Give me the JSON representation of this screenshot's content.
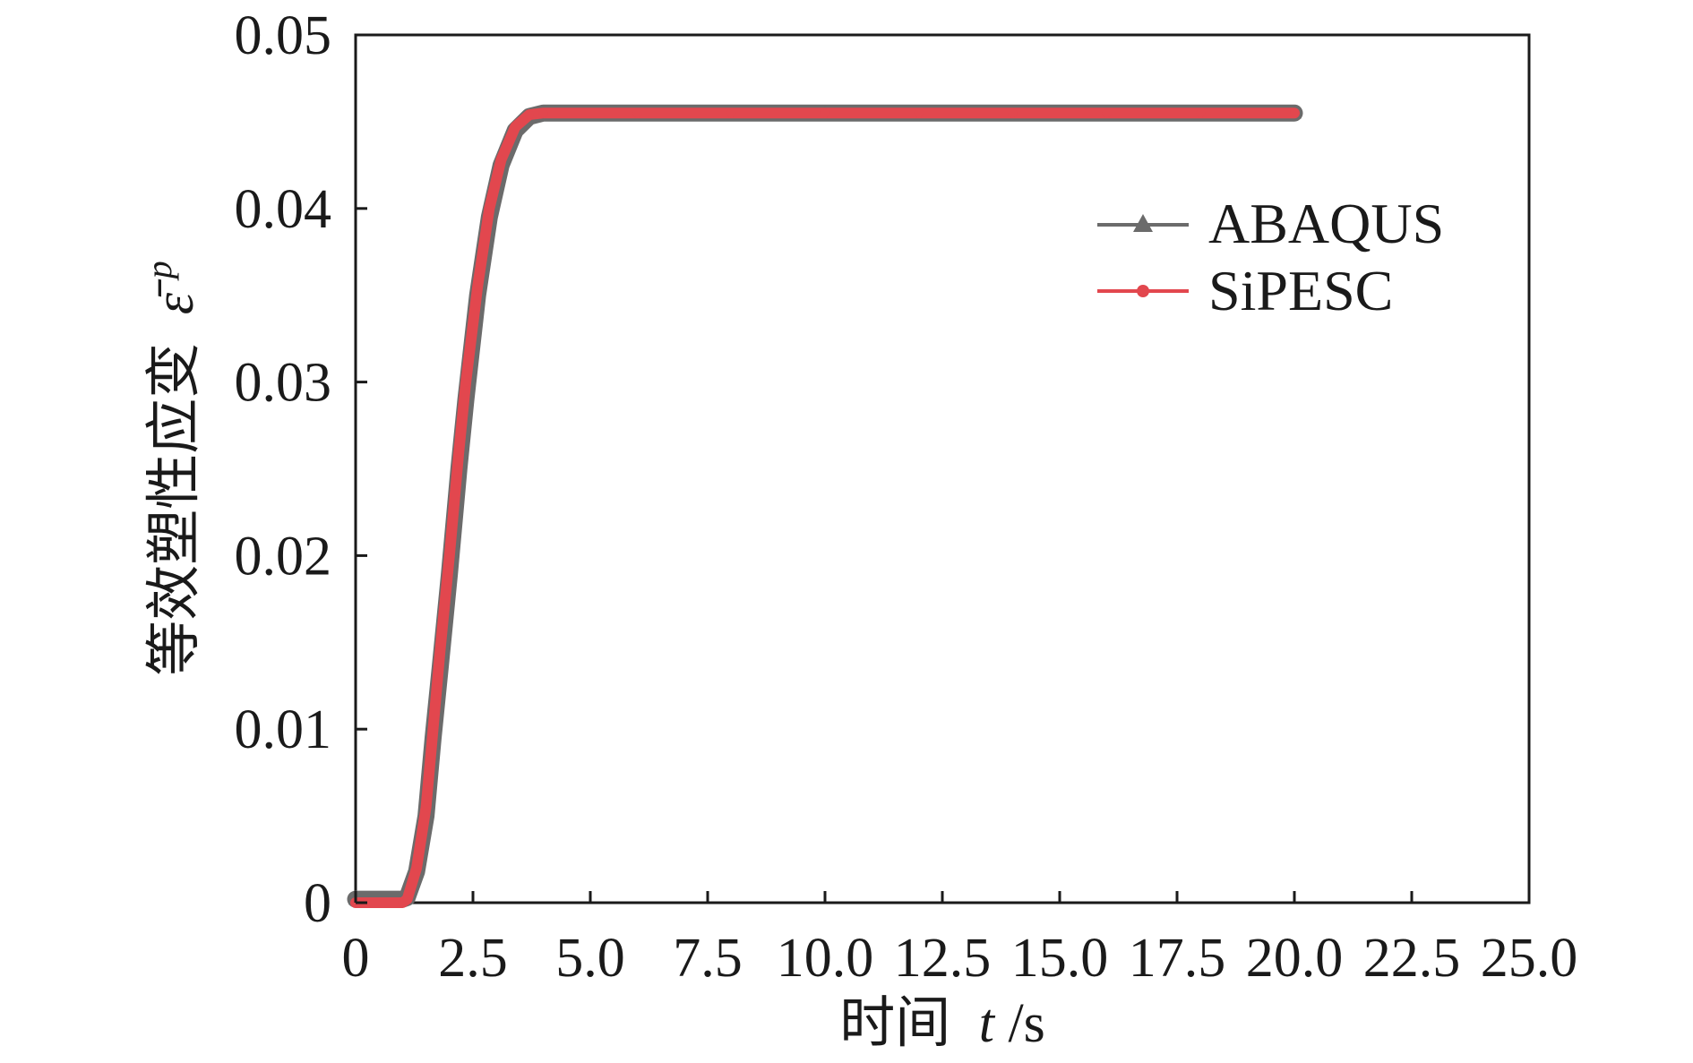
{
  "chart_data": {
    "type": "line",
    "xlabel": {
      "prefix": "时间",
      "var": "t",
      "suffix": "/s"
    },
    "ylabel": {
      "prefix": "等效塑性应变",
      "symbol": "ε̄",
      "sup": "p"
    },
    "xlim": [
      0,
      25
    ],
    "ylim": [
      0,
      0.05
    ],
    "x_tick_labels": [
      "0",
      "2.5",
      "5.0",
      "7.5",
      "10.0",
      "12.5",
      "15.0",
      "17.5",
      "20.0",
      "22.5",
      "25.0"
    ],
    "y_tick_labels": [
      "0",
      "0.01",
      "0.02",
      "0.03",
      "0.04",
      "0.05"
    ],
    "grid": false,
    "legend_position": "upper-right",
    "series": [
      {
        "name": "ABAQUS",
        "color": "#6b6b6b",
        "marker": "triangle",
        "x": [
          0,
          1.0,
          1.1,
          1.3,
          1.5,
          1.65,
          1.8,
          2.0,
          2.2,
          2.35,
          2.6,
          2.85,
          3.1,
          3.4,
          3.7,
          4.0,
          6.0,
          8.0,
          10.0,
          12.0,
          14.0,
          16.0,
          18.0,
          20.0
        ],
        "y": [
          0.0002,
          0.0002,
          0.0003,
          0.0018,
          0.005,
          0.0095,
          0.0135,
          0.019,
          0.025,
          0.029,
          0.035,
          0.0395,
          0.0425,
          0.0445,
          0.0453,
          0.0455,
          0.0455,
          0.0455,
          0.0455,
          0.0455,
          0.0455,
          0.0455,
          0.0455,
          0.0455
        ]
      },
      {
        "name": "SiPESC",
        "color": "#e2474e",
        "marker": "circle",
        "x": [
          0,
          1.0,
          1.1,
          1.3,
          1.5,
          1.65,
          1.8,
          2.0,
          2.2,
          2.35,
          2.6,
          2.85,
          3.1,
          3.4,
          3.7,
          4.0,
          6.0,
          8.0,
          10.0,
          12.0,
          14.0,
          16.0,
          18.0,
          20.0
        ],
        "y": [
          0,
          0,
          0.0002,
          0.002,
          0.0055,
          0.01,
          0.0145,
          0.02,
          0.026,
          0.03,
          0.0355,
          0.04,
          0.0428,
          0.0447,
          0.0454,
          0.0455,
          0.0455,
          0.0455,
          0.0455,
          0.0455,
          0.0455,
          0.0455,
          0.0455,
          0.0455
        ]
      }
    ]
  }
}
